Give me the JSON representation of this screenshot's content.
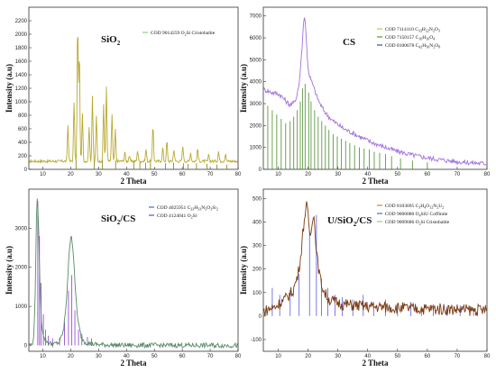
{
  "chart_data": [
    {
      "type": "line",
      "title": "SiO₂",
      "title_base": "SiO",
      "title_sub": "2",
      "xlabel": "2 Theta",
      "ylabel": "Intensity (a.u)",
      "xlim": [
        5,
        80
      ],
      "ylim": [
        0,
        2400
      ],
      "xticks": [
        10,
        20,
        30,
        40,
        50,
        60,
        70,
        80
      ],
      "yticks": [
        0,
        200,
        400,
        600,
        800,
        1000,
        1200,
        1400,
        1600,
        1800,
        2000,
        2200
      ],
      "pattern_color": "#b9aa30",
      "ref_color": "#7a7a18",
      "legend": [
        {
          "parts": [
            {
              "t": "COD 9014259 O"
            },
            {
              "t": "2",
              "sub": true
            },
            {
              "t": "Si Cristobalite"
            }
          ],
          "color": "#8fcf7a"
        }
      ],
      "peaks": [
        {
          "x": 19.0,
          "y": 650
        },
        {
          "x": 21.2,
          "y": 1000
        },
        {
          "x": 22.5,
          "y": 2150
        },
        {
          "x": 23.1,
          "y": 1720
        },
        {
          "x": 24.2,
          "y": 820
        },
        {
          "x": 26.6,
          "y": 640
        },
        {
          "x": 27.8,
          "y": 1090
        },
        {
          "x": 29.2,
          "y": 780
        },
        {
          "x": 31.8,
          "y": 970
        },
        {
          "x": 32.8,
          "y": 1230
        },
        {
          "x": 34.8,
          "y": 820
        },
        {
          "x": 36.0,
          "y": 580
        },
        {
          "x": 39.4,
          "y": 260
        },
        {
          "x": 41.0,
          "y": 200
        },
        {
          "x": 44.0,
          "y": 280
        },
        {
          "x": 47.0,
          "y": 300
        },
        {
          "x": 49.5,
          "y": 650
        },
        {
          "x": 53.0,
          "y": 320
        },
        {
          "x": 54.5,
          "y": 420
        },
        {
          "x": 57.0,
          "y": 300
        },
        {
          "x": 60.2,
          "y": 340
        },
        {
          "x": 63.0,
          "y": 250
        },
        {
          "x": 65.5,
          "y": 300
        },
        {
          "x": 69.5,
          "y": 220
        },
        {
          "x": 73.0,
          "y": 270
        },
        {
          "x": 75.5,
          "y": 240
        }
      ],
      "refs": [
        {
          "x": 21.9,
          "y": 210
        },
        {
          "x": 28.4,
          "y": 160
        },
        {
          "x": 31.4,
          "y": 140
        },
        {
          "x": 36.1,
          "y": 130
        },
        {
          "x": 42.6,
          "y": 110
        },
        {
          "x": 44.8,
          "y": 120
        },
        {
          "x": 46.9,
          "y": 100
        },
        {
          "x": 48.6,
          "y": 110
        },
        {
          "x": 54.0,
          "y": 90
        },
        {
          "x": 56.9,
          "y": 100
        },
        {
          "x": 60.4,
          "y": 90
        },
        {
          "x": 62.1,
          "y": 80
        },
        {
          "x": 65.1,
          "y": 90
        },
        {
          "x": 68.8,
          "y": 80
        },
        {
          "x": 72.4,
          "y": 70
        },
        {
          "x": 76.0,
          "y": 70
        }
      ],
      "baseline": 120
    },
    {
      "type": "line",
      "title": "CS",
      "title_base": "CS",
      "title_sub": "",
      "xlabel": "2 Theta",
      "ylabel": "Intensity (a.u)",
      "xlim": [
        5,
        80
      ],
      "ylim": [
        0,
        7400
      ],
      "xticks": [
        10,
        20,
        30,
        40,
        50,
        60,
        70,
        80
      ],
      "yticks": [
        0,
        1000,
        2000,
        3000,
        4000,
        5000,
        6000,
        7000
      ],
      "pattern_color": "#a070e0",
      "ref_color": "#4a8a2a",
      "legend": [
        {
          "parts": [
            {
              "t": "COD 7114110 C"
            },
            {
              "t": "33",
              "sub": true
            },
            {
              "t": "H"
            },
            {
              "t": "22",
              "sub": true
            },
            {
              "t": "N"
            },
            {
              "t": "2",
              "sub": true
            },
            {
              "t": "O"
            },
            {
              "t": "3",
              "sub": true
            }
          ],
          "color": "#b8c850"
        },
        {
          "parts": [
            {
              "t": "COD 7150157 C"
            },
            {
              "t": "16",
              "sub": true
            },
            {
              "t": "H"
            },
            {
              "t": "16",
              "sub": true
            },
            {
              "t": "O"
            },
            {
              "t": "4",
              "sub": true
            }
          ],
          "color": "#5a9a3a"
        },
        {
          "parts": [
            {
              "t": "COD 8100678 C"
            },
            {
              "t": "42",
              "sub": true
            },
            {
              "t": "H"
            },
            {
              "t": "56",
              "sub": true
            },
            {
              "t": "N"
            },
            {
              "t": "2",
              "sub": true
            },
            {
              "t": "O"
            },
            {
              "t": "8",
              "sub": true
            }
          ],
          "color": "#3a4aaa"
        }
      ],
      "curve": [
        [
          5,
          3650
        ],
        [
          6,
          3600
        ],
        [
          7,
          3550
        ],
        [
          8,
          3500
        ],
        [
          9,
          3480
        ],
        [
          10,
          3450
        ],
        [
          11,
          3350
        ],
        [
          12,
          3200
        ],
        [
          13,
          3050
        ],
        [
          14,
          2950
        ],
        [
          15,
          3000
        ],
        [
          16,
          3250
        ],
        [
          17,
          3900
        ],
        [
          17.8,
          5200
        ],
        [
          18.4,
          6500
        ],
        [
          18.8,
          7100
        ],
        [
          19.3,
          6300
        ],
        [
          19.8,
          4900
        ],
        [
          20.4,
          4300
        ],
        [
          21.2,
          4000
        ],
        [
          22,
          3700
        ],
        [
          23,
          3300
        ],
        [
          24,
          3000
        ],
        [
          25,
          2750
        ],
        [
          26,
          2550
        ],
        [
          28,
          2250
        ],
        [
          30,
          2050
        ],
        [
          32,
          1850
        ],
        [
          35,
          1650
        ],
        [
          38,
          1450
        ],
        [
          41,
          1250
        ],
        [
          44,
          1100
        ],
        [
          47,
          950
        ],
        [
          50,
          820
        ],
        [
          55,
          650
        ],
        [
          60,
          520
        ],
        [
          65,
          430
        ],
        [
          70,
          350
        ],
        [
          75,
          300
        ],
        [
          80,
          260
        ]
      ],
      "refs": [
        {
          "x": 6.5,
          "y": 2900
        },
        {
          "x": 8.0,
          "y": 2700
        },
        {
          "x": 9.5,
          "y": 2500
        },
        {
          "x": 11.0,
          "y": 2300
        },
        {
          "x": 12.5,
          "y": 2100
        },
        {
          "x": 14.0,
          "y": 2200
        },
        {
          "x": 15.2,
          "y": 2400
        },
        {
          "x": 16.4,
          "y": 2700
        },
        {
          "x": 17.4,
          "y": 3100
        },
        {
          "x": 18.2,
          "y": 3700
        },
        {
          "x": 19.0,
          "y": 3900
        },
        {
          "x": 20.2,
          "y": 3500
        },
        {
          "x": 21.0,
          "y": 3100
        },
        {
          "x": 22.2,
          "y": 2700
        },
        {
          "x": 23.4,
          "y": 2400
        },
        {
          "x": 24.6,
          "y": 2200
        },
        {
          "x": 25.8,
          "y": 2000
        },
        {
          "x": 27.0,
          "y": 1800
        },
        {
          "x": 28.4,
          "y": 1600
        },
        {
          "x": 29.8,
          "y": 1500
        },
        {
          "x": 31.2,
          "y": 1400
        },
        {
          "x": 32.6,
          "y": 1300
        },
        {
          "x": 34.0,
          "y": 1200
        },
        {
          "x": 35.6,
          "y": 1100
        },
        {
          "x": 37.2,
          "y": 1000
        },
        {
          "x": 38.8,
          "y": 950
        },
        {
          "x": 40.5,
          "y": 900
        },
        {
          "x": 42.2,
          "y": 800
        },
        {
          "x": 44.0,
          "y": 750
        },
        {
          "x": 46.0,
          "y": 700
        },
        {
          "x": 48.0,
          "y": 600
        },
        {
          "x": 51.0,
          "y": 500
        },
        {
          "x": 55.0,
          "y": 400
        },
        {
          "x": 60.0,
          "y": 320
        }
      ]
    },
    {
      "type": "line",
      "title": "SiO₂/CS",
      "title_base": "SiO",
      "title_sub": "2",
      "title_rest": "/CS",
      "xlabel": "2 Theta",
      "ylabel": "Intensity (a.u)",
      "xlim": [
        5,
        80
      ],
      "ylim": [
        -150,
        4000
      ],
      "xticks": [
        10,
        20,
        30,
        40,
        50,
        60,
        70,
        80
      ],
      "yticks": [
        0,
        1000,
        2000,
        3000
      ],
      "pattern_color": "#5a8a6a",
      "ref_color": "#8a3ad0",
      "legend": [
        {
          "parts": [
            {
              "t": "COD 4025951 C"
            },
            {
              "t": "33",
              "sub": true
            },
            {
              "t": "H"
            },
            {
              "t": "33",
              "sub": true
            },
            {
              "t": "N"
            },
            {
              "t": "3",
              "sub": true
            },
            {
              "t": "O"
            },
            {
              "t": "3",
              "sub": true
            },
            {
              "t": "Si"
            },
            {
              "t": "2",
              "sub": true
            }
          ],
          "color": "#4a6ad0"
        },
        {
          "parts": [
            {
              "t": "COD 4124041 O"
            },
            {
              "t": "2",
              "sub": true
            },
            {
              "t": "Si"
            }
          ],
          "color": "#8a3ad0"
        }
      ],
      "curve": [
        [
          5,
          0
        ],
        [
          6,
          20
        ],
        [
          6.8,
          200
        ],
        [
          7.3,
          1500
        ],
        [
          7.8,
          3500
        ],
        [
          8.1,
          3800
        ],
        [
          8.5,
          3000
        ],
        [
          9.0,
          1500
        ],
        [
          9.6,
          500
        ],
        [
          10.5,
          180
        ],
        [
          12,
          60
        ],
        [
          14,
          30
        ],
        [
          16,
          80
        ],
        [
          17.5,
          400
        ],
        [
          18.5,
          1200
        ],
        [
          19.4,
          2300
        ],
        [
          20.1,
          2900
        ],
        [
          20.8,
          2500
        ],
        [
          21.6,
          1500
        ],
        [
          22.6,
          600
        ],
        [
          23.8,
          220
        ],
        [
          25,
          90
        ],
        [
          27,
          40
        ],
        [
          30,
          20
        ],
        [
          35,
          10
        ],
        [
          40,
          5
        ],
        [
          80,
          0
        ]
      ],
      "refs": [
        {
          "x": 8.2,
          "y": 3700
        },
        {
          "x": 8.8,
          "y": 2800
        },
        {
          "x": 9.4,
          "y": 1600
        },
        {
          "x": 10.2,
          "y": 800
        },
        {
          "x": 11.0,
          "y": 400
        },
        {
          "x": 12.0,
          "y": 250
        },
        {
          "x": 13.5,
          "y": 180
        },
        {
          "x": 16.0,
          "y": 200
        },
        {
          "x": 17.8,
          "y": 600
        },
        {
          "x": 19.2,
          "y": 1400
        },
        {
          "x": 20.4,
          "y": 1800
        },
        {
          "x": 21.5,
          "y": 900
        },
        {
          "x": 22.8,
          "y": 400
        },
        {
          "x": 24.0,
          "y": 300
        },
        {
          "x": 26.0,
          "y": 220
        },
        {
          "x": 27.5,
          "y": 180
        }
      ]
    },
    {
      "type": "line",
      "title": "U/SiO₂/CS",
      "title_base": "U/SiO",
      "title_sub": "2",
      "title_rest": "/CS",
      "xlabel": "2 Theta",
      "ylabel": "Intensity (a.u)",
      "xlim": [
        5,
        80
      ],
      "ylim": [
        -150,
        540
      ],
      "xticks": [
        10,
        20,
        30,
        40,
        50,
        60,
        70,
        80
      ],
      "yticks": [
        -100,
        0,
        100,
        200,
        300,
        400,
        500
      ],
      "pattern_color": "#7a3a10",
      "ref_color": "#5a5ae0",
      "legend": [
        {
          "parts": [
            {
              "t": "COD 8103695 C"
            },
            {
              "t": "3",
              "sub": true
            },
            {
              "t": "H"
            },
            {
              "t": "4",
              "sub": true
            },
            {
              "t": "O"
            },
            {
              "t": "12",
              "sub": true
            },
            {
              "t": "N"
            },
            {
              "t": "2",
              "sub": true
            },
            {
              "t": "U"
            },
            {
              "t": "2",
              "sub": true
            }
          ],
          "color": "#c08060"
        },
        {
          "parts": [
            {
              "t": "COD 9000080 O"
            },
            {
              "t": "4",
              "sub": true
            },
            {
              "t": "SiU Coffinite"
            }
          ],
          "color": "#4a6ad0"
        },
        {
          "parts": [
            {
              "t": "COD 9009686 O"
            },
            {
              "t": "2",
              "sub": true
            },
            {
              "t": "Si Cristobalite"
            }
          ],
          "color": "#8fcf7a"
        }
      ],
      "curve": [
        [
          5,
          20
        ],
        [
          7,
          30
        ],
        [
          9,
          40
        ],
        [
          11,
          60
        ],
        [
          13,
          80
        ],
        [
          15,
          110
        ],
        [
          16.5,
          170
        ],
        [
          17.5,
          250
        ],
        [
          18.3,
          360
        ],
        [
          19.0,
          440
        ],
        [
          19.6,
          470
        ],
        [
          20.2,
          400
        ],
        [
          20.8,
          330
        ],
        [
          21.4,
          420
        ],
        [
          21.9,
          440
        ],
        [
          22.5,
          330
        ],
        [
          23.3,
          220
        ],
        [
          24.2,
          150
        ],
        [
          25.5,
          100
        ],
        [
          27,
          70
        ],
        [
          29,
          60
        ],
        [
          32,
          50
        ],
        [
          36,
          45
        ],
        [
          40,
          40
        ],
        [
          45,
          38
        ],
        [
          50,
          35
        ],
        [
          55,
          32
        ],
        [
          60,
          30
        ],
        [
          65,
          30
        ],
        [
          70,
          28
        ],
        [
          75,
          25
        ],
        [
          80,
          25
        ]
      ],
      "refs": [
        {
          "x": 8.0,
          "y": 120
        },
        {
          "x": 10.5,
          "y": 90
        },
        {
          "x": 14.0,
          "y": 110
        },
        {
          "x": 17.0,
          "y": 180
        },
        {
          "x": 20.5,
          "y": 360
        },
        {
          "x": 22.8,
          "y": 430
        },
        {
          "x": 24.5,
          "y": 160
        },
        {
          "x": 26.6,
          "y": 120
        },
        {
          "x": 29.0,
          "y": 90
        },
        {
          "x": 31.5,
          "y": 80
        },
        {
          "x": 35.0,
          "y": 70
        },
        {
          "x": 38.5,
          "y": 90
        },
        {
          "x": 42.0,
          "y": 60
        },
        {
          "x": 46.0,
          "y": 70
        },
        {
          "x": 50.0,
          "y": 50
        },
        {
          "x": 54.5,
          "y": 60
        },
        {
          "x": 58.0,
          "y": 40
        },
        {
          "x": 62.0,
          "y": 50
        },
        {
          "x": 66.5,
          "y": 40
        },
        {
          "x": 71.0,
          "y": 45
        },
        {
          "x": 75.5,
          "y": 35
        }
      ],
      "noise": 25
    }
  ]
}
